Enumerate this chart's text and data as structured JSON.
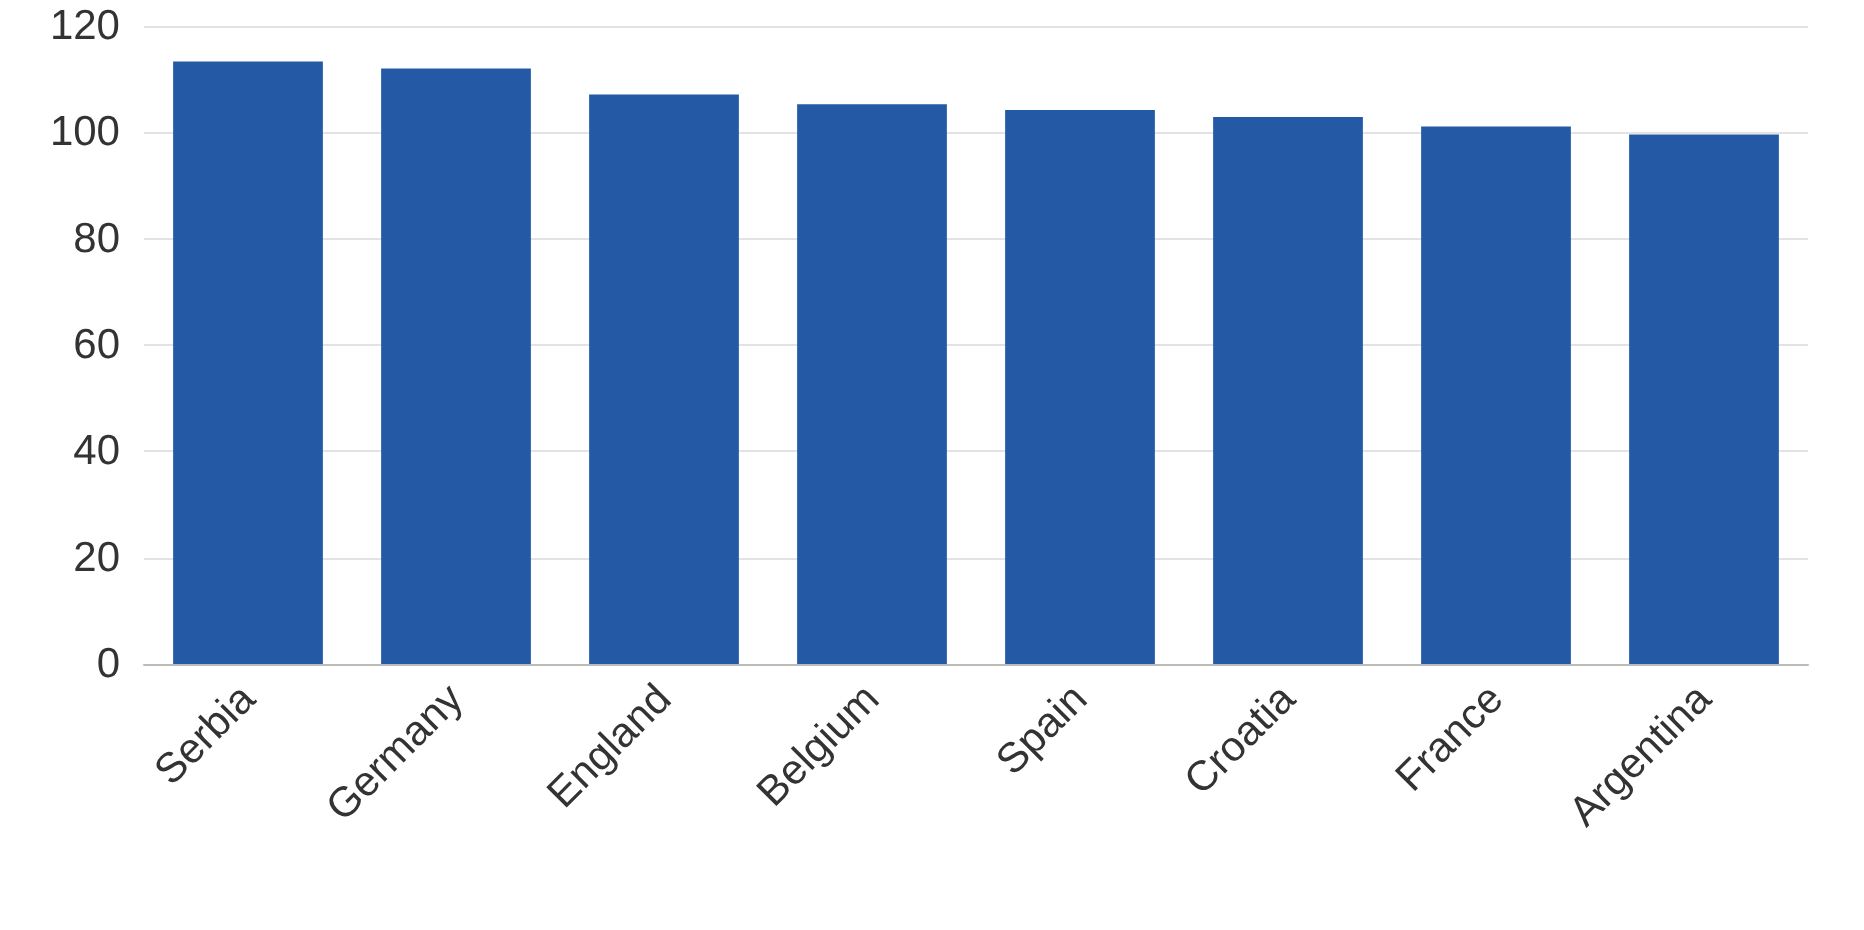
{
  "chart_data": {
    "type": "bar",
    "categories": [
      "Serbia",
      "Germany",
      "England",
      "Belgium",
      "Spain",
      "Croatia",
      "France",
      "Argentina"
    ],
    "values": [
      113.3,
      112,
      107.1,
      105.3,
      104.2,
      102.9,
      101.1,
      99.6
    ],
    "color": "#245aa5",
    "ylim": [
      0,
      120
    ],
    "yticks": [
      0,
      20,
      40,
      60,
      80,
      100,
      120
    ],
    "grid": "y"
  }
}
